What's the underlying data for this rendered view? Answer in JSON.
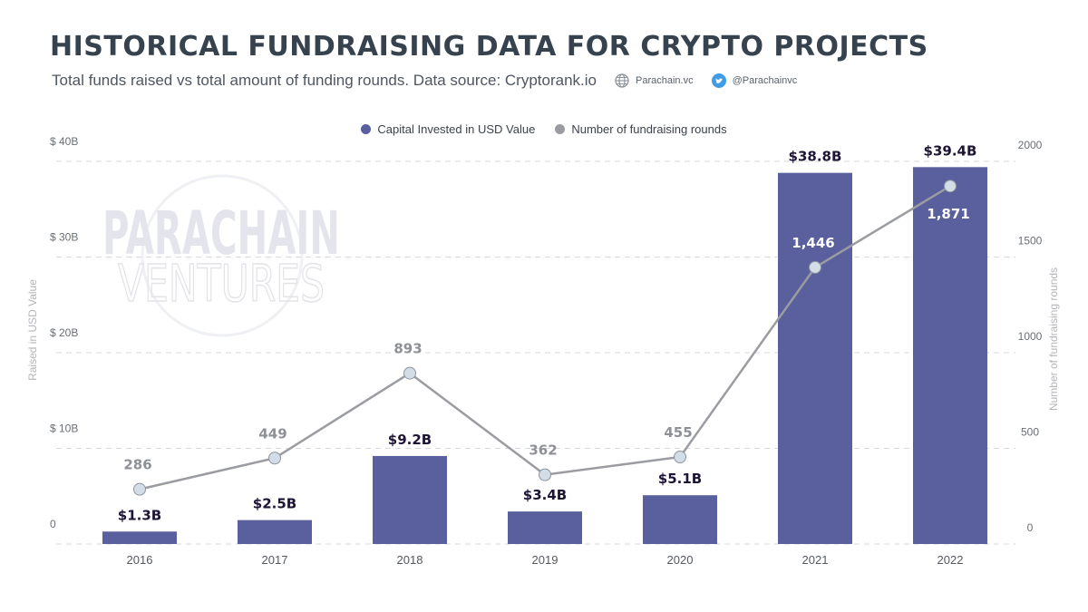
{
  "header": {
    "title": "HISTORICAL FUNDRAISING DATA FOR CRYPTO PROJECTS",
    "subtitle": "Total funds raised vs total amount of funding rounds. Data source: Cryptorank.io",
    "website": "Parachain.vc",
    "website_icon": "globe-icon",
    "twitter": "@Parachainvc",
    "twitter_icon": "twitter-bird-icon"
  },
  "watermark": {
    "line1": "PARACHAIN",
    "line2": "VENTURES"
  },
  "colors": {
    "bar": "#5a5f9e",
    "line": "#9a9ca1",
    "marker": "#d2dde8",
    "bar_label": "#1e1436",
    "line_label": "#8d9095"
  },
  "chart_data": {
    "type": "bar",
    "categories": [
      "2016",
      "2017",
      "2018",
      "2019",
      "2020",
      "2021",
      "2022"
    ],
    "series": [
      {
        "name": "Capital Invested in USD Value",
        "type": "bar",
        "axis": "left",
        "values": [
          1.3,
          2.5,
          9.2,
          3.4,
          5.1,
          38.8,
          39.4
        ],
        "labels": [
          "$1.3B",
          "$2.5B",
          "$9.2B",
          "$3.4B",
          "$5.1B",
          "$38.8B",
          "$39.4B"
        ]
      },
      {
        "name": "Number of fundraising rounds",
        "type": "line",
        "axis": "right",
        "values": [
          286,
          449,
          893,
          362,
          455,
          1446,
          1871
        ],
        "labels": [
          "286",
          "449",
          "893",
          "362",
          "455",
          "1,446",
          "1,871"
        ]
      }
    ],
    "ylabel": "Raised in USD Value",
    "ylabel_right": "Number of fundraising rounds",
    "ylim": [
      0,
      40
    ],
    "ylim_right": [
      0,
      2000
    ],
    "yticks": [
      0,
      10,
      20,
      30,
      40
    ],
    "ytick_labels": [
      "0",
      "$ 10B",
      "$ 20B",
      "$ 30B",
      "$ 40B"
    ],
    "yticks_right": [
      0,
      500,
      1000,
      1500,
      2000
    ],
    "ytick_labels_right": [
      "0",
      "500",
      "1000",
      "1500",
      "2000"
    ],
    "grid": true,
    "legend": "top-center"
  }
}
